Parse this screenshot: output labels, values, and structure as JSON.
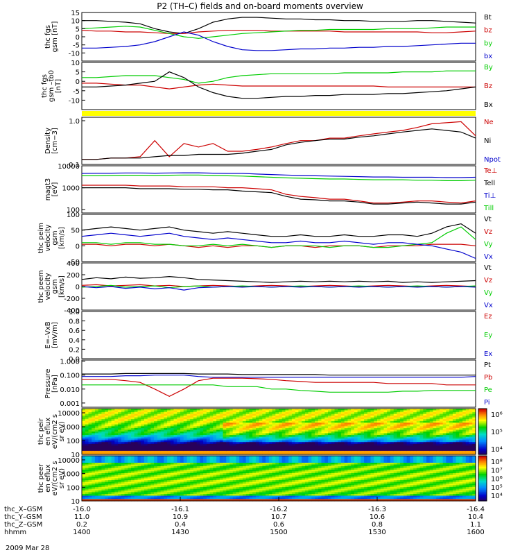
{
  "title": "P2 (TH–C) fields and on-board moments overview",
  "time_axis": {
    "x_ticks": [
      "-16.0",
      "-16.1",
      "-16.2",
      "-16.3",
      "-16.4"
    ],
    "rows": [
      {
        "label": "thc_X–GSM",
        "values": [
          "-16.0",
          "-16.1",
          "-16.2",
          "-16.3",
          "-16.4"
        ]
      },
      {
        "label": "thc_Y–GSM",
        "values": [
          "11.0",
          "10.9",
          "10.7",
          "10.6",
          "10.4"
        ]
      },
      {
        "label": "thc_Z–GSM",
        "values": [
          "0.2",
          "0.4",
          "0.6",
          "0.8",
          "1.1"
        ]
      },
      {
        "label": "hhmm",
        "values": [
          "1400",
          "1430",
          "1500",
          "1530",
          "1600"
        ]
      }
    ],
    "date": "2009 Mar 28"
  },
  "chart_data": [
    {
      "type": "line",
      "ylabel": "thc fgs gsm [nT]",
      "ylim": [
        -15,
        15
      ],
      "ticks": [
        "15",
        "10",
        "5",
        "0",
        "-5",
        "-10"
      ],
      "series": [
        {
          "name": "Bt",
          "color": "#000000",
          "values": [
            10,
            10,
            9.5,
            9,
            8,
            5,
            3,
            2,
            5,
            9,
            11,
            12,
            12,
            11.5,
            11,
            11,
            10.5,
            10.5,
            10,
            10,
            9.5,
            9.5,
            9.5,
            10,
            10,
            9.5,
            9,
            8.5
          ]
        },
        {
          "name": "bz",
          "color": "#cc0000",
          "values": [
            4,
            3.5,
            3.5,
            3,
            3,
            2.5,
            2,
            2,
            3,
            3.5,
            4,
            4,
            4,
            3.5,
            3.5,
            3.5,
            3.5,
            3.5,
            3,
            3,
            3,
            3,
            3,
            3,
            2.5,
            2.5,
            3,
            3.5
          ]
        },
        {
          "name": "by",
          "color": "#00cc00",
          "values": [
            5,
            5.5,
            6,
            6.5,
            6,
            4,
            2,
            0,
            -1,
            0,
            1,
            2,
            2.5,
            3,
            3.5,
            4,
            4,
            4.5,
            4.5,
            4.5,
            4.5,
            5,
            5,
            5,
            5.5,
            6,
            6,
            6
          ]
        },
        {
          "name": "bx",
          "color": "#0000cc",
          "values": [
            -7,
            -7,
            -6.5,
            -6,
            -5,
            -3,
            0,
            3,
            1,
            -3,
            -6,
            -8,
            -8.5,
            -8.5,
            -8,
            -7.5,
            -7.5,
            -7,
            -7,
            -6.5,
            -6.5,
            -6,
            -6,
            -5.5,
            -5,
            -4.5,
            -4,
            -4
          ]
        }
      ]
    },
    {
      "type": "line",
      "ylabel": "thc fgs gsm –tb0 [nT]",
      "ylim": [
        -15,
        10
      ],
      "ticks": [
        "10",
        "5",
        "0",
        "-5",
        "-10"
      ],
      "series": [
        {
          "name": "By",
          "color": "#00cc00",
          "values": [
            2,
            2,
            2.5,
            3,
            3,
            3,
            2,
            1,
            -1,
            0,
            2,
            3,
            3.5,
            4,
            4,
            4,
            4,
            4,
            4.5,
            4.5,
            4.5,
            4.5,
            5,
            5,
            5,
            5.5,
            5.5,
            5.5
          ]
        },
        {
          "name": "Bz",
          "color": "#cc0000",
          "values": [
            -1,
            -1,
            -1.5,
            -2,
            -2,
            -3,
            -4,
            -3,
            -2,
            -1.5,
            -2,
            -2.5,
            -2.5,
            -2.5,
            -2.5,
            -2.5,
            -2.5,
            -2.5,
            -2.5,
            -2.5,
            -2.5,
            -3,
            -3,
            -3,
            -3,
            -3,
            -3,
            -3
          ]
        },
        {
          "name": "Bx",
          "color": "#000000",
          "values": [
            -3,
            -3,
            -2.5,
            -2,
            -1,
            0,
            5,
            2,
            -3,
            -6,
            -8,
            -9,
            -9,
            -8.5,
            -8,
            -8,
            -7.5,
            -7.5,
            -7,
            -7,
            -7,
            -6.5,
            -6.5,
            -6,
            -5.5,
            -5,
            -4,
            -3
          ]
        }
      ]
    },
    {
      "type": "area",
      "ylabel": "",
      "fill_color": "#ffff00"
    },
    {
      "type": "line",
      "ylabel": "Density [cm−3]",
      "scale": "log",
      "ylim": [
        0.1,
        1.2
      ],
      "ticks": [
        "1.0",
        "0.1"
      ],
      "series": [
        {
          "name": "Ne",
          "color": "#cc0000",
          "values": [
            0.13,
            0.13,
            0.14,
            0.14,
            0.15,
            0.35,
            0.15,
            0.3,
            0.25,
            0.3,
            0.2,
            0.2,
            0.22,
            0.25,
            0.3,
            0.35,
            0.35,
            0.4,
            0.4,
            0.45,
            0.5,
            0.55,
            0.6,
            0.7,
            0.85,
            0.9,
            0.95,
            0.45
          ]
        },
        {
          "name": "Ni",
          "color": "#000000",
          "values": [
            0.13,
            0.13,
            0.14,
            0.14,
            0.14,
            0.15,
            0.16,
            0.16,
            0.17,
            0.17,
            0.17,
            0.18,
            0.2,
            0.22,
            0.28,
            0.32,
            0.35,
            0.38,
            0.38,
            0.42,
            0.45,
            0.5,
            0.55,
            0.6,
            0.65,
            0.6,
            0.55,
            0.4
          ]
        },
        {
          "name": "Npot",
          "color": "#0000cc",
          "values": []
        }
      ]
    },
    {
      "type": "line",
      "ylabel": "magt3 [eV]",
      "scale": "log",
      "ylim": [
        70,
        10000
      ],
      "ticks": [
        "10000",
        "1000",
        "100"
      ],
      "series": [
        {
          "name": "Te⊥",
          "color": "#cc0000",
          "values": [
            1300,
            1300,
            1300,
            1300,
            1200,
            1200,
            1200,
            1100,
            1100,
            1100,
            1000,
            1000,
            900,
            800,
            500,
            400,
            350,
            300,
            300,
            250,
            200,
            200,
            220,
            250,
            250,
            220,
            200,
            250
          ]
        },
        {
          "name": "Tell",
          "color": "#000000",
          "values": [
            1000,
            1000,
            1000,
            1000,
            900,
            900,
            900,
            850,
            850,
            800,
            800,
            700,
            650,
            600,
            400,
            300,
            280,
            250,
            250,
            220,
            180,
            180,
            200,
            220,
            200,
            180,
            180,
            220
          ]
        },
        {
          "name": "Ti⊥",
          "color": "#0000cc",
          "values": [
            4500,
            4600,
            4600,
            4700,
            4700,
            4600,
            4700,
            4800,
            4800,
            4600,
            4500,
            4500,
            4200,
            4000,
            3800,
            3600,
            3500,
            3400,
            3300,
            3200,
            3100,
            3100,
            3000,
            3000,
            3000,
            2900,
            2900,
            3000
          ]
        },
        {
          "name": "Till",
          "color": "#00cc00",
          "values": [
            3500,
            3500,
            3600,
            3700,
            3700,
            3600,
            3700,
            3800,
            3800,
            3600,
            3500,
            3400,
            3200,
            3000,
            2800,
            2700,
            2600,
            2500,
            2500,
            2400,
            2300,
            2300,
            2300,
            2200,
            2200,
            2100,
            2100,
            2200
          ]
        }
      ]
    },
    {
      "type": "line",
      "ylabel": "thc peim velocity gsm [km/s]",
      "ylim": [
        -50,
        100
      ],
      "ticks": [
        "100",
        "50",
        "0",
        "-50"
      ],
      "series": [
        {
          "name": "Vt",
          "color": "#000000",
          "values": [
            50,
            55,
            60,
            55,
            50,
            55,
            60,
            50,
            45,
            40,
            45,
            40,
            35,
            30,
            30,
            35,
            30,
            30,
            35,
            30,
            30,
            35,
            35,
            30,
            40,
            60,
            70,
            40
          ]
        },
        {
          "name": "Vz",
          "color": "#cc0000",
          "values": [
            5,
            5,
            0,
            5,
            5,
            0,
            5,
            0,
            -5,
            0,
            -5,
            0,
            0,
            -5,
            0,
            0,
            -5,
            0,
            0,
            0,
            -5,
            0,
            0,
            0,
            5,
            5,
            5,
            0
          ]
        },
        {
          "name": "Vy",
          "color": "#00cc00",
          "values": [
            10,
            10,
            5,
            10,
            10,
            5,
            5,
            0,
            0,
            5,
            0,
            5,
            0,
            -5,
            0,
            0,
            0,
            -5,
            0,
            0,
            -5,
            -5,
            0,
            5,
            10,
            40,
            60,
            20
          ]
        },
        {
          "name": "Vx",
          "color": "#0000cc",
          "values": [
            30,
            35,
            40,
            35,
            30,
            35,
            40,
            30,
            25,
            20,
            25,
            20,
            15,
            10,
            10,
            15,
            10,
            10,
            15,
            10,
            5,
            10,
            10,
            5,
            0,
            -10,
            -20,
            -40
          ]
        }
      ]
    },
    {
      "type": "line",
      "ylabel": "thc peem velocity gsm [km/s]",
      "ylim": [
        -400,
        400
      ],
      "ticks": [
        "400",
        "200",
        "0",
        "-200",
        "-400"
      ],
      "series": [
        {
          "name": "Vt",
          "color": "#000000",
          "values": [
            120,
            150,
            130,
            160,
            140,
            150,
            170,
            150,
            120,
            110,
            100,
            90,
            80,
            70,
            80,
            90,
            80,
            90,
            80,
            90,
            80,
            90,
            70,
            80,
            70,
            80,
            90,
            100
          ]
        },
        {
          "name": "Vz",
          "color": "#cc0000",
          "values": [
            20,
            30,
            10,
            20,
            30,
            10,
            20,
            0,
            10,
            20,
            10,
            0,
            10,
            20,
            10,
            0,
            10,
            20,
            10,
            0,
            10,
            20,
            10,
            0,
            10,
            20,
            10,
            0
          ]
        },
        {
          "name": "Vy",
          "color": "#00cc00",
          "values": [
            -10,
            0,
            20,
            -10,
            0,
            10,
            -20,
            0,
            10,
            -10,
            0,
            10,
            0,
            -10,
            0,
            10,
            0,
            -10,
            0,
            10,
            0,
            -10,
            0,
            10,
            0,
            -10,
            0,
            10
          ]
        },
        {
          "name": "Vx",
          "color": "#0000cc",
          "values": [
            0,
            -20,
            0,
            -30,
            -10,
            -40,
            -20,
            -60,
            -20,
            -10,
            0,
            -10,
            0,
            -10,
            0,
            -10,
            0,
            -10,
            0,
            -10,
            0,
            -10,
            0,
            -10,
            0,
            -10,
            0,
            -10
          ]
        }
      ]
    },
    {
      "type": "line",
      "ylabel": "E=–VxB [mV/m]",
      "ylim": [
        0.0,
        1.0
      ],
      "ticks": [
        "1.0",
        "0.8",
        "0.6",
        "0.4",
        "0.2",
        "0.0"
      ],
      "series": [
        {
          "name": "Ez",
          "color": "#cc0000",
          "values": []
        },
        {
          "name": "Ey",
          "color": "#00cc00",
          "values": []
        },
        {
          "name": "Ex",
          "color": "#0000cc",
          "values": []
        }
      ]
    },
    {
      "type": "line",
      "ylabel": "Pressure [nPa]",
      "scale": "log",
      "ylim": [
        0.0005,
        1.2
      ],
      "ticks": [
        "1.000",
        "0.100",
        "0.010",
        "0.001"
      ],
      "series": [
        {
          "name": "Pt",
          "color": "#000000",
          "values": [
            0.12,
            0.12,
            0.12,
            0.13,
            0.13,
            0.13,
            0.13,
            0.13,
            0.12,
            0.12,
            0.12,
            0.11,
            0.11,
            0.11,
            0.11,
            0.11,
            0.11,
            0.1,
            0.1,
            0.1,
            0.1,
            0.1,
            0.1,
            0.1,
            0.1,
            0.1,
            0.1,
            0.1
          ]
        },
        {
          "name": "Pb",
          "color": "#cc0000",
          "values": [
            0.05,
            0.05,
            0.05,
            0.04,
            0.03,
            0.01,
            0.003,
            0.01,
            0.04,
            0.06,
            0.06,
            0.06,
            0.055,
            0.05,
            0.04,
            0.035,
            0.03,
            0.03,
            0.03,
            0.03,
            0.03,
            0.025,
            0.025,
            0.025,
            0.025,
            0.02,
            0.02,
            0.02
          ]
        },
        {
          "name": "Pe",
          "color": "#00cc00",
          "values": [
            0.02,
            0.02,
            0.02,
            0.02,
            0.02,
            0.02,
            0.02,
            0.02,
            0.02,
            0.02,
            0.015,
            0.015,
            0.015,
            0.01,
            0.01,
            0.008,
            0.007,
            0.006,
            0.006,
            0.006,
            0.006,
            0.006,
            0.007,
            0.007,
            0.008,
            0.008,
            0.008,
            0.008
          ]
        },
        {
          "name": "Pi",
          "color": "#0000cc",
          "values": [
            0.08,
            0.08,
            0.08,
            0.09,
            0.09,
            0.1,
            0.1,
            0.1,
            0.08,
            0.07,
            0.07,
            0.07,
            0.07,
            0.07,
            0.07,
            0.07,
            0.07,
            0.07,
            0.07,
            0.07,
            0.07,
            0.07,
            0.07,
            0.07,
            0.07,
            0.07,
            0.07,
            0.08
          ]
        }
      ]
    },
    {
      "type": "heatmap",
      "ylabel": "thc peir en eflux eV/(cm2 s sr eV)",
      "scale": "log",
      "ylim": [
        10,
        20000
      ],
      "ticks": [
        "10000",
        "1000",
        "100",
        "10"
      ],
      "colorbar": {
        "min_exp": 3.5,
        "max_exp": 6.5,
        "tick_labels": [
          "10⁶",
          "10⁵",
          "10⁴"
        ]
      }
    },
    {
      "type": "heatmap",
      "ylabel": "thc peer en eflux eV/(cm2 s sr eV)",
      "scale": "log",
      "ylim": [
        10,
        20000
      ],
      "ticks": [
        "10000",
        "1000",
        "100",
        "10"
      ],
      "colorbar": {
        "min_exp": 3.5,
        "max_exp": 8.5,
        "tick_labels": [
          "10⁸",
          "10⁷",
          "10⁶",
          "10⁵",
          "10⁴"
        ]
      }
    }
  ]
}
